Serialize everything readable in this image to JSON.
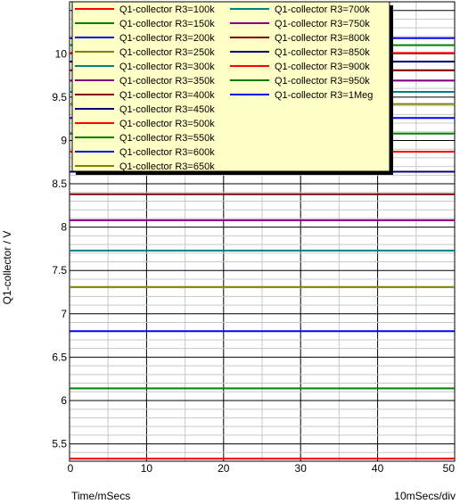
{
  "chart_data": {
    "type": "line",
    "x": [
      0,
      50
    ],
    "xlim": [
      0,
      50
    ],
    "ylim": [
      5.3,
      10.6
    ],
    "xticks": [
      0,
      10,
      20,
      30,
      40,
      50
    ],
    "yticks": [
      5.5,
      6,
      6.5,
      7,
      7.5,
      8,
      8.5,
      9,
      9.5,
      10
    ],
    "xticks_text": [
      "0",
      "10",
      "20",
      "30",
      "40",
      "50"
    ],
    "yticks_text": [
      "5.5",
      "6",
      "6.5",
      "7",
      "7.5",
      "8",
      "8.5",
      "9",
      "9.5",
      "10"
    ],
    "xlabel": "Time/mSecs",
    "ylabel": "Q1-collector / V",
    "xscale_note": "10mSecs/div",
    "grid": true,
    "legend_position": "top",
    "series": [
      {
        "name": "Q1-collector R3=100k",
        "color": "#ff0000",
        "values": [
          5.33,
          5.33
        ]
      },
      {
        "name": "Q1-collector R3=150k",
        "color": "#008000",
        "values": [
          6.14,
          6.14
        ]
      },
      {
        "name": "Q1-collector R3=200k",
        "color": "#0000ff",
        "values": [
          6.8,
          6.8
        ]
      },
      {
        "name": "Q1-collector R3=250k",
        "color": "#808000",
        "values": [
          7.31,
          7.31
        ]
      },
      {
        "name": "Q1-collector R3=300k",
        "color": "#008080",
        "values": [
          7.73,
          7.73
        ]
      },
      {
        "name": "Q1-collector R3=350k",
        "color": "#800080",
        "values": [
          8.08,
          8.08
        ]
      },
      {
        "name": "Q1-collector R3=400k",
        "color": "#800000",
        "values": [
          8.38,
          8.38
        ]
      },
      {
        "name": "Q1-collector R3=450k",
        "color": "#000080",
        "values": [
          8.64,
          8.64
        ]
      },
      {
        "name": "Q1-collector R3=500k",
        "color": "#ff0000",
        "values": [
          8.87,
          8.87
        ]
      },
      {
        "name": "Q1-collector R3=550k",
        "color": "#008000",
        "values": [
          9.08,
          9.08
        ]
      },
      {
        "name": "Q1-collector R3=600k",
        "color": "#0000ff",
        "values": [
          9.26,
          9.26
        ]
      },
      {
        "name": "Q1-collector R3=650k",
        "color": "#808000",
        "values": [
          9.42,
          9.42
        ]
      },
      {
        "name": "Q1-collector R3=700k",
        "color": "#008080",
        "values": [
          9.56,
          9.56
        ]
      },
      {
        "name": "Q1-collector R3=750k",
        "color": "#800080",
        "values": [
          9.69,
          9.69
        ]
      },
      {
        "name": "Q1-collector R3=800k",
        "color": "#800000",
        "values": [
          9.81,
          9.81
        ]
      },
      {
        "name": "Q1-collector R3=850k",
        "color": "#000080",
        "values": [
          9.91,
          9.91
        ]
      },
      {
        "name": "Q1-collector R3=900k",
        "color": "#ff0000",
        "values": [
          10.01,
          10.01
        ]
      },
      {
        "name": "Q1-collector R3=950k",
        "color": "#008000",
        "values": [
          10.1,
          10.1
        ]
      },
      {
        "name": "Q1-collector R3=1Meg",
        "color": "#0000ff",
        "values": [
          10.18,
          10.18
        ]
      }
    ]
  }
}
